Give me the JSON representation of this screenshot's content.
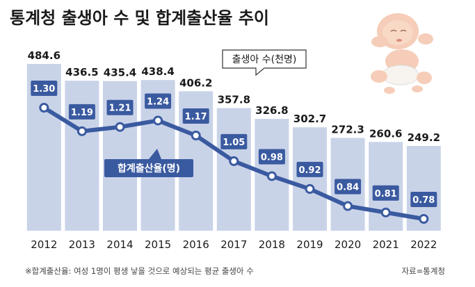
{
  "title": "통계청 출생아 수 및 합계출산율 추이",
  "footnote": "※합계출산율: 여성 1명이 평생 낳을 것으로 예상되는 평균 출생아 수",
  "source": "자료=통계청",
  "chart_data": {
    "type": "bar",
    "categories": [
      "2012",
      "2013",
      "2014",
      "2015",
      "2016",
      "2017",
      "2018",
      "2019",
      "2020",
      "2021",
      "2022"
    ],
    "series": [
      {
        "name": "출생아 수(천명)",
        "type": "bar",
        "values": [
          484.6,
          436.5,
          435.4,
          438.4,
          406.2,
          357.8,
          326.8,
          302.7,
          272.3,
          260.6,
          249.2
        ]
      },
      {
        "name": "합계출산율(명)",
        "type": "line",
        "values": [
          1.3,
          1.19,
          1.21,
          1.24,
          1.17,
          1.05,
          0.98,
          0.92,
          0.84,
          0.81,
          0.78
        ]
      }
    ],
    "bar_labels": [
      "484.6",
      "436.5",
      "435.4",
      "438.4",
      "406.2",
      "357.8",
      "326.8",
      "302.7",
      "272.3",
      "260.6",
      "249.2"
    ],
    "rate_labels": [
      "1.30",
      "1.19",
      "1.21",
      "1.24",
      "1.17",
      "1.05",
      "0.98",
      "0.92",
      "0.84",
      "0.81",
      "0.78"
    ],
    "legend": {
      "births": "출생아 수(천명)",
      "rate": "합계출산율(명)"
    },
    "colors": {
      "bar": "#c9d3e8",
      "line": "#3a5aa0",
      "label_box": "#3a5aa0"
    }
  }
}
